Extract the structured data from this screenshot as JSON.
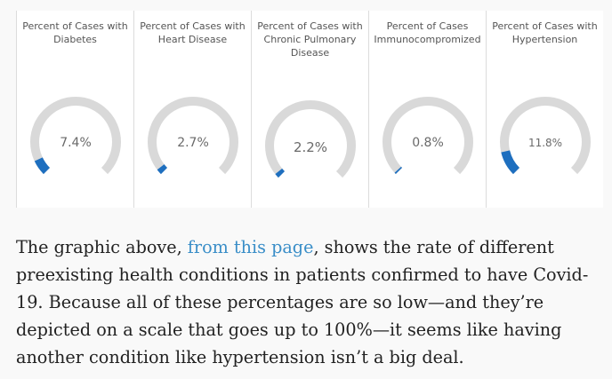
{
  "gauges": [
    {
      "title": "Percent of Cases with Diabetes",
      "value_label": "7.4%",
      "value": 7.4
    },
    {
      "title": "Percent of Cases with Heart Disease",
      "value_label": "2.7%",
      "value": 2.7
    },
    {
      "title": "Percent of Cases with Chronic Pulmonary Disease",
      "value_label": "2.2%",
      "value": 2.2
    },
    {
      "title": "Percent of Cases Immunocompromized",
      "value_label": "0.8%",
      "value": 0.8
    },
    {
      "title": "Percent of Cases with Hypertension",
      "value_label": "11.8%",
      "value": 11.8
    }
  ],
  "gauge_colors": {
    "track": "#d9d9d9",
    "fill": "#1e6fbf"
  },
  "article": {
    "text_before": "The graphic above, ",
    "link_text": "from this page",
    "text_after": ", shows the rate of different preexisting health conditions in patients confirmed to have Covid-19. Because all of these percentages are so low—and they’re depicted on a scale that goes up to 100%—it seems like having another condition like hypertension isn’t a big deal."
  }
}
